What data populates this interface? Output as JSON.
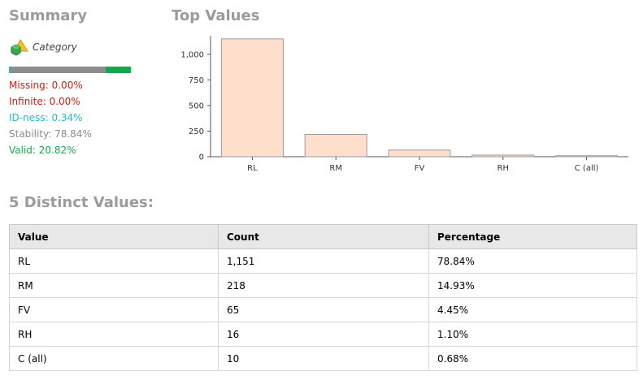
{
  "summary": {
    "title": "Summary",
    "category_label": "Category",
    "bar_fractions": {
      "missing": 0.0,
      "stability": 0.7884,
      "valid": 0.2082
    },
    "missing": "Missing: 0.00%",
    "infinite": "Infinite: 0.00%",
    "idness": "ID-ness: 0.34%",
    "stability": "Stability: 78.84%",
    "valid": "Valid: 20.82%"
  },
  "top_values": {
    "title": "Top Values"
  },
  "chart_data": {
    "type": "bar",
    "categories": [
      "RL",
      "RM",
      "FV",
      "RH",
      "C (all)"
    ],
    "values": [
      1151,
      218,
      65,
      16,
      10
    ],
    "title": "",
    "xlabel": "",
    "ylabel": "",
    "ylim": [
      0,
      1150
    ],
    "yticks": [
      0,
      250,
      500,
      750,
      1000
    ],
    "ytick_labels": [
      "0",
      "250",
      "500",
      "750",
      "1,000"
    ],
    "bar_fill": "#ffdfcc",
    "bar_stroke": "#9a9a9a",
    "grid": false
  },
  "distinct": {
    "title": "5 Distinct Values:",
    "columns": [
      "Value",
      "Count",
      "Percentage"
    ],
    "rows": [
      [
        "RL",
        "1,151",
        "78.84%"
      ],
      [
        "RM",
        "218",
        "14.93%"
      ],
      [
        "FV",
        "65",
        "4.45%"
      ],
      [
        "RH",
        "16",
        "1.10%"
      ],
      [
        "C (all)",
        "10",
        "0.68%"
      ]
    ]
  },
  "colors": {
    "missing": "#cc1f0a",
    "idness": "#29b8c8",
    "stability": "#8c8c8c",
    "valid": "#15a84b",
    "title_gray": "#9b9b9b"
  }
}
